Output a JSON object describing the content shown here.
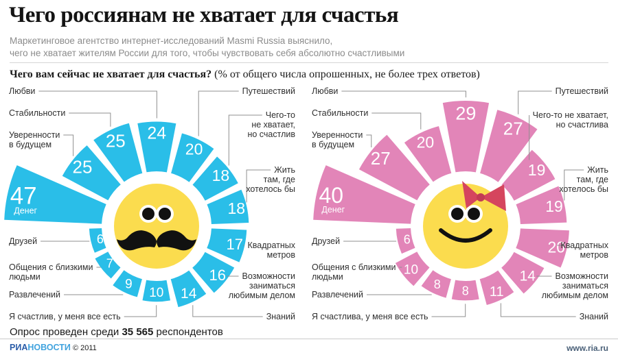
{
  "header": {
    "title": "Чего россиянам не хватает для счастья",
    "subtitle_line1": "Маркетинговое агентство интернет-исследований Masmi Russia выяснило,",
    "subtitle_line2": "чего не хватает жителям России для того, чтобы чувствовать себя абсолютно счастливыми",
    "question": "Чего вам сейчас не хватает для счастья?",
    "question_note": " (% от общего числа опрошенных, не более трех ответов)"
  },
  "chart_data": [
    {
      "type": "radial-bar",
      "title": "Чего вам сейчас не хватает для счастья?",
      "unit": "% от общего числа опрошенных, не более трех ответов",
      "icon": "mustache-face-icon",
      "color": "#2ABEE8",
      "categories": [
        "Денег",
        "Уверенности\nв будущем",
        "Стабильности",
        "Любви",
        "Путешествий",
        "Чего-то\nне хватает,\nно счастлив",
        "Жить\nтам, где\nхотелось бы",
        "Квадратных\nметров",
        "Возможности\nзаниматься\nлюбимым делом",
        "Знаний",
        "Я счастлив, у меня все есть",
        "Развлечений",
        "Общения с близкими\nлюдьми",
        "Друзей"
      ],
      "values": [
        47,
        25,
        25,
        24,
        20,
        18,
        18,
        17,
        16,
        14,
        10,
        9,
        7,
        6
      ]
    },
    {
      "type": "radial-bar",
      "title": "Чего вам сейчас не хватает для счастья?",
      "unit": "% от общего числа опрошенных, не более трех ответов",
      "icon": "bow-face-icon",
      "color": "#E285B8",
      "categories": [
        "Денег",
        "Уверенности\nв будущем",
        "Стабильности",
        "Любви",
        "Путешествий",
        "Чего-то не хватает,\nно счастлива",
        "Жить\nтам, где\nхотелось бы",
        "Квадратных\nметров",
        "Возможности\nзаниматься\nлюбимым делом",
        "Знаний",
        "Я счастлива, у меня все есть",
        "Развлечений",
        "Общения с близкими\nлюдьми",
        "Друзей"
      ],
      "values": [
        40,
        27,
        20,
        29,
        27,
        19,
        19,
        20,
        14,
        11,
        8,
        8,
        10,
        6
      ]
    }
  ],
  "face": {
    "color": "#FBDC4E",
    "bow_color": "#D5455E",
    "bow_knot_color": "#C23B54",
    "feature_color": "#111111"
  },
  "connector_color": "#8f8f8f",
  "footer": {
    "survey_prefix": "Опрос проведен среди ",
    "survey_count": "35 565",
    "survey_suffix": " респондентов"
  },
  "brand": {
    "ria": "РИА",
    "novosti": "НОВОСТИ",
    "copyright": " © 2011",
    "site": "www.ria.ru"
  }
}
